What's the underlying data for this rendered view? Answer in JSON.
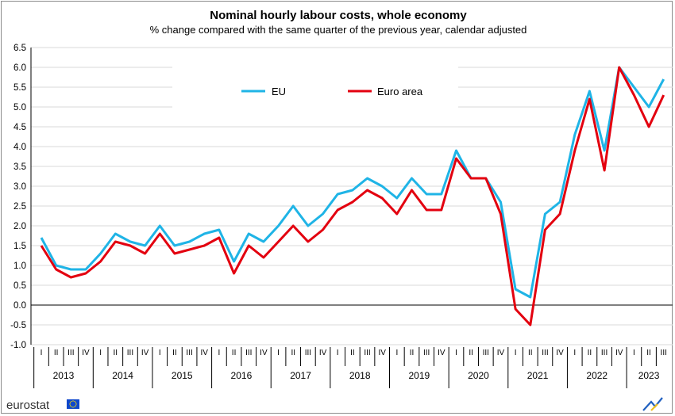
{
  "chart_data": {
    "type": "line",
    "title": "Nominal hourly labour costs, whole economy",
    "subtitle": "% change compared with the same quarter of the previous year, calendar adjusted",
    "ylim": [
      -1.0,
      6.5
    ],
    "yticks": [
      "6.5",
      "6.0",
      "5.5",
      "5.0",
      "4.5",
      "4.0",
      "3.5",
      "3.0",
      "2.5",
      "2.0",
      "1.5",
      "1.0",
      "0.5",
      "0.0",
      "-0.5",
      "-1.0"
    ],
    "quarters": [
      "I",
      "II",
      "III",
      "IV"
    ],
    "years": [
      "2013",
      "2014",
      "2015",
      "2016",
      "2017",
      "2018",
      "2019",
      "2020",
      "2021",
      "2022",
      "2023"
    ],
    "grid": "horizontal",
    "legend_position": "top-left",
    "series": [
      {
        "name": "EU",
        "color": "#1fb4e6",
        "values": [
          1.7,
          1.0,
          0.9,
          0.9,
          1.3,
          1.8,
          1.6,
          1.5,
          2.0,
          1.5,
          1.6,
          1.8,
          1.9,
          1.1,
          1.8,
          1.6,
          2.0,
          2.5,
          2.0,
          2.3,
          2.8,
          2.9,
          3.2,
          3.0,
          2.7,
          3.2,
          2.8,
          2.8,
          3.9,
          3.2,
          3.2,
          2.6,
          0.4,
          0.2,
          2.3,
          2.6,
          4.3,
          5.4,
          3.9,
          6.0,
          5.5,
          5.0,
          5.7
        ]
      },
      {
        "name": "Euro area",
        "color": "#e3000f",
        "values": [
          1.5,
          0.9,
          0.7,
          0.8,
          1.1,
          1.6,
          1.5,
          1.3,
          1.8,
          1.3,
          1.4,
          1.5,
          1.7,
          0.8,
          1.5,
          1.2,
          1.6,
          2.0,
          1.6,
          1.9,
          2.4,
          2.6,
          2.9,
          2.7,
          2.3,
          2.9,
          2.4,
          2.4,
          3.7,
          3.2,
          3.2,
          2.3,
          -0.1,
          -0.5,
          1.9,
          2.3,
          3.9,
          5.2,
          3.4,
          6.0,
          5.3,
          4.5,
          5.3
        ]
      }
    ]
  },
  "footer": {
    "brand_text": "eurostat",
    "flag_color": "#0e47cb",
    "star_color": "#ffde00"
  }
}
